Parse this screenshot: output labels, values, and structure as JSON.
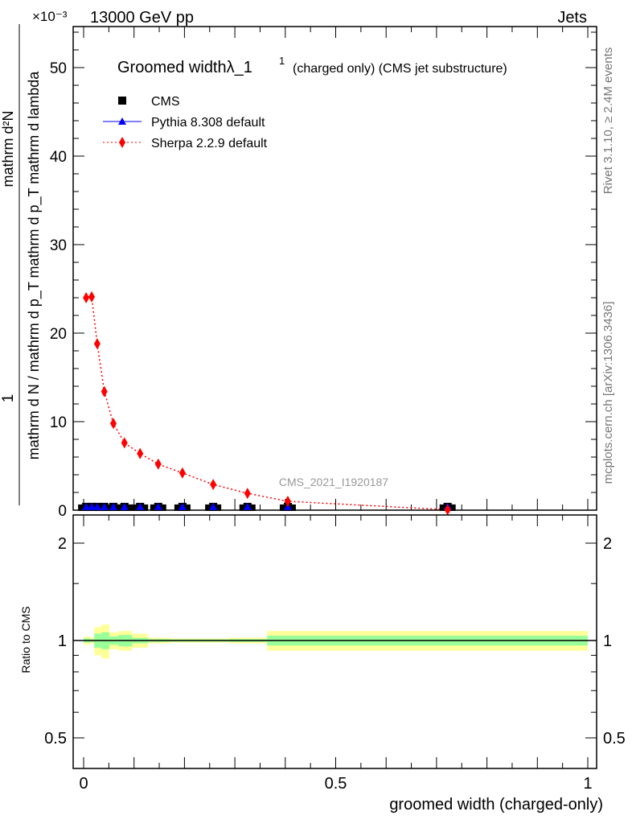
{
  "header": {
    "left": "13000 GeV pp",
    "right": "Jets",
    "multiplier": "×10⁻³"
  },
  "side_labels": {
    "rivet": "Rivet 3.1.10, ≥ 2.4M events",
    "mcplots": "mcplots.cern.ch [arXiv:1306.3436]"
  },
  "watermark": "CMS_2021_I1920187",
  "chart_data": [
    {
      "type": "scatter",
      "title": "Groomed widthλ_1",
      "title_sup": "1",
      "title_suffix": "(charged only) (CMS jet substructure)",
      "xlabel": "groomed width (charged-only)",
      "ylabel_num": "1",
      "ylabel_den": "mathrm d N / mathrm d p_T mathrm d p_T mathrm d lambda",
      "ylabel_top": "mathrm d²N",
      "xlim": [
        0,
        1
      ],
      "ylim": [
        0,
        54
      ],
      "yticks": [
        0,
        10,
        20,
        30,
        40,
        50
      ],
      "x": [
        0.005,
        0.016,
        0.027,
        0.041,
        0.059,
        0.081,
        0.112,
        0.148,
        0.196,
        0.257,
        0.325,
        0.405,
        0.722
      ],
      "series": [
        {
          "name": "CMS",
          "color": "#000000",
          "marker": "square",
          "values": [
            0.1,
            0.1,
            0.1,
            0.1,
            0.1,
            0.1,
            0.1,
            0.1,
            0.1,
            0.1,
            0.1,
            0.1,
            0.1
          ]
        },
        {
          "name": "Pythia 8.308 default",
          "color": "#0000ff",
          "marker": "triangle",
          "values": [
            0.1,
            0.1,
            0.1,
            0.1,
            0.1,
            0.1,
            0.1,
            0.1,
            0.1,
            0.1,
            0.1,
            0.1,
            0.1
          ]
        },
        {
          "name": "Sherpa 2.2.9 default",
          "color": "#ff0000",
          "marker": "diamond",
          "values": [
            24.0,
            24.1,
            18.8,
            13.4,
            9.8,
            7.6,
            6.4,
            5.2,
            4.2,
            2.9,
            1.9,
            1.0,
            0.05
          ]
        }
      ],
      "legend_position": "top-left"
    },
    {
      "type": "area",
      "ylabel": "Ratio to CMS",
      "xlim": [
        0,
        1
      ],
      "ylim": [
        0.4,
        2.3
      ],
      "yscale": "log",
      "yticks": [
        0.5,
        1,
        2
      ],
      "xticks": [
        0,
        0.5,
        1
      ],
      "bin_edges": [
        0,
        0.013,
        0.021,
        0.035,
        0.051,
        0.069,
        0.096,
        0.128,
        0.171,
        0.289,
        0.364,
        1.0
      ],
      "total_unc": [
        0.03,
        0.02,
        0.1,
        0.12,
        0.06,
        0.07,
        0.05,
        0.02,
        0.015,
        0.02,
        0.07
      ],
      "stat_unc": [
        0.015,
        0.01,
        0.05,
        0.06,
        0.03,
        0.04,
        0.02,
        0.01,
        0.008,
        0.01,
        0.035
      ],
      "band_colors": {
        "total": "#ffff99",
        "stat": "#99ff99"
      }
    }
  ]
}
